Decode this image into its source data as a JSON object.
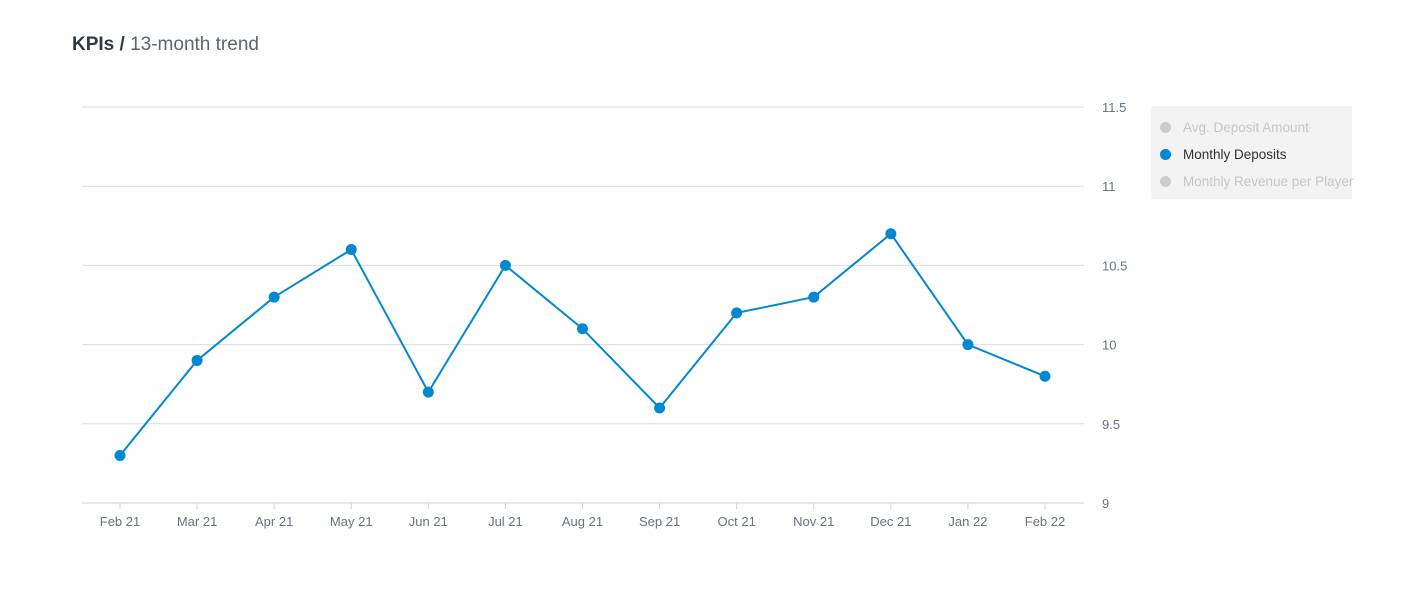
{
  "header": {
    "title_bold": "KPIs",
    "separator": "/",
    "title_sub": "13-month trend"
  },
  "colors": {
    "series": "#0288d1",
    "inactive": "#cccccc",
    "grid": "#dddddd",
    "axis_text": "#667380",
    "legend_active_text": "#333333",
    "legend_inactive_text": "#c6c6c6"
  },
  "legend": {
    "placement": "right",
    "items": [
      {
        "label": "Avg. Deposit Amount",
        "active": false
      },
      {
        "label": "Monthly Deposits",
        "active": true
      },
      {
        "label": "Monthly Revenue per Player",
        "active": false
      }
    ]
  },
  "chart_data": {
    "type": "line",
    "title": "",
    "xlabel": "",
    "ylabel": "",
    "categories": [
      "Feb 21",
      "Mar 21",
      "Apr 21",
      "May 21",
      "Jun 21",
      "Jul 21",
      "Aug 21",
      "Sep 21",
      "Oct 21",
      "Nov 21",
      "Dec 21",
      "Jan 22",
      "Feb 22"
    ],
    "series": [
      {
        "name": "Monthly Deposits",
        "values": [
          9.3,
          9.9,
          10.3,
          10.6,
          9.7,
          10.5,
          10.1,
          9.6,
          10.2,
          10.3,
          10.7,
          10.0,
          9.8
        ]
      }
    ],
    "ylim": [
      9,
      11.5
    ],
    "yticks": [
      "9",
      "9.5",
      "10",
      "10.5",
      "11",
      "11.5"
    ],
    "y_axis_side": "right",
    "grid": true
  }
}
